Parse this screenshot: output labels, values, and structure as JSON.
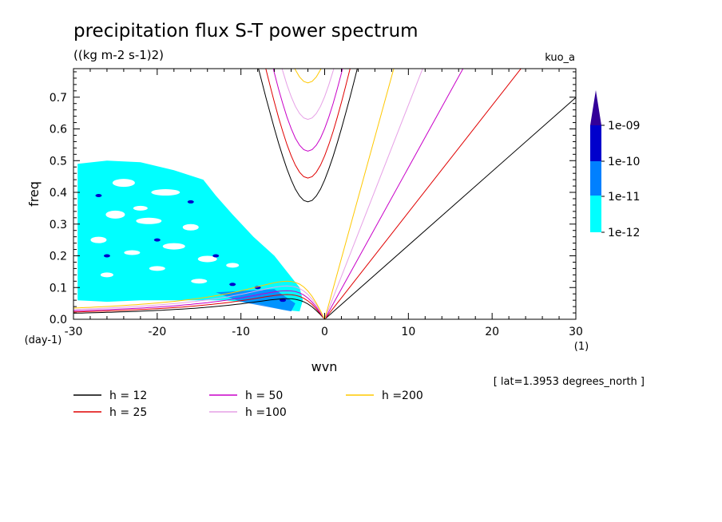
{
  "header": {
    "title": "precipitation flux S-T power spectrum",
    "units": "((kg m-2 s-1)2)",
    "dataset": "kuo_a",
    "annotation": "[ lat=1.3953 degrees_north ]"
  },
  "chart_data": {
    "type": "line",
    "title": "precipitation flux S-T power spectrum",
    "subtitle": "((kg m-2 s-1)2)",
    "xlabel": "wvn",
    "xunit": "(1)",
    "ylabel": "freq",
    "yunit": "(day-1)",
    "xlim": [
      -30,
      30
    ],
    "ylim": [
      0,
      0.79
    ],
    "xticks": [
      -30,
      -20,
      -10,
      0,
      10,
      20,
      30
    ],
    "yticks": [
      0.0,
      0.1,
      0.2,
      0.3,
      0.4,
      0.5,
      0.6,
      0.7
    ],
    "ytick_labels": [
      "0.0",
      "0.1",
      "0.2",
      "0.3",
      "0.4",
      "0.5",
      "0.6",
      "0.7"
    ],
    "grid": false,
    "legend_placement": "bottom",
    "series": [
      {
        "name": "h = 12",
        "color": "#000000",
        "equivalent_depth": 12
      },
      {
        "name": "h = 25",
        "color": "#e00000",
        "equivalent_depth": 25
      },
      {
        "name": "h = 50",
        "color": "#c800c8",
        "equivalent_depth": 50
      },
      {
        "name": "h =100",
        "color": "#e6a0e6",
        "equivalent_depth": 100
      },
      {
        "name": "h =200",
        "color": "#ffc800",
        "equivalent_depth": 200
      }
    ],
    "curve_families": [
      {
        "kind": "inertia-gravity",
        "min_freq_by_depth": {
          "12": 0.37,
          "25": 0.445,
          "50": 0.53,
          "100": 0.63,
          "200": 0.745
        }
      },
      {
        "kind": "kelvin",
        "slope_per_wvn_by_depth": {
          "12": 0.0233,
          "25": 0.0337,
          "50": 0.0478,
          "100": 0.0675,
          "200": 0.0957
        }
      },
      {
        "kind": "rossby",
        "peak_freq_by_depth": {
          "12": 0.065,
          "25": 0.078,
          "50": 0.09,
          "100": 0.105,
          "200": 0.12
        }
      }
    ],
    "shaded_contours": {
      "levels": [
        "1e-12",
        "1e-11",
        "1e-10",
        "1e-09"
      ],
      "colors": [
        "#00ffff",
        "#0080ff",
        "#0000cc",
        "#330099"
      ],
      "main_region": {
        "wvn": [
          -30,
          -3
        ],
        "freq": [
          0.05,
          0.5
        ]
      },
      "high_power_patches": [
        {
          "wvn": -27,
          "freq": 0.39
        },
        {
          "wvn": -20,
          "freq": 0.25
        },
        {
          "wvn": -16,
          "freq": 0.37
        },
        {
          "wvn": -11,
          "freq": 0.11
        },
        {
          "wvn": -8,
          "freq": 0.1
        },
        {
          "wvn": -5,
          "freq": 0.06
        },
        {
          "wvn": -26,
          "freq": 0.2
        },
        {
          "wvn": -13,
          "freq": 0.2
        }
      ]
    }
  },
  "colorbar": {
    "labels": [
      "1e-09",
      "1e-10",
      "1e-11",
      "1e-12"
    ]
  },
  "legend": {
    "items": [
      "h = 12",
      "h = 25",
      "h = 50",
      "h =100",
      "h =200"
    ]
  }
}
